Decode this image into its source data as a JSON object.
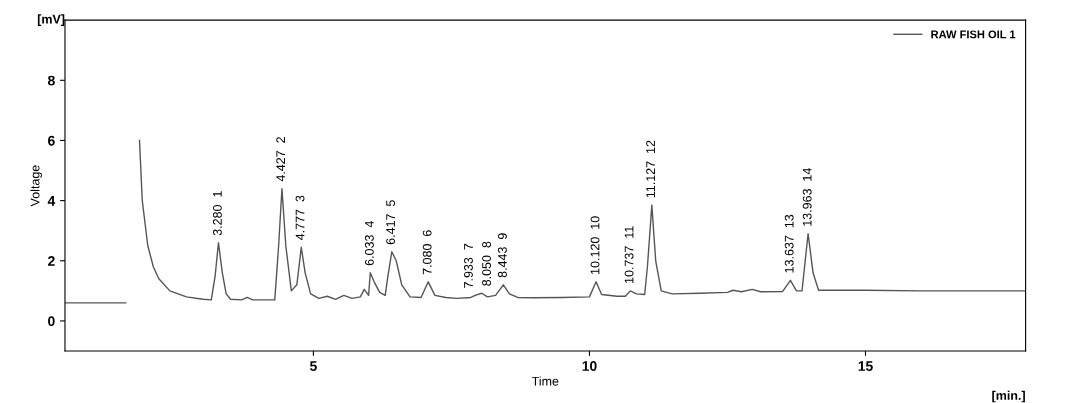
{
  "chart_data": {
    "type": "line",
    "xlabel": "Time",
    "ylabel": "Voltage",
    "xlim": [
      0.5,
      17.9
    ],
    "ylim": [
      -1,
      10
    ],
    "xticks": [
      5,
      10,
      15
    ],
    "yticks": [
      0,
      2,
      4,
      6,
      8
    ],
    "grid": false,
    "legend": "top right",
    "marker": "none",
    "line_style": "solid",
    "series": [
      {
        "name": "RAW FISH OIL 1",
        "color": "#555555",
        "x": [
          0.5,
          1.6,
          1.61,
          1.8,
          1.85,
          1.9,
          2.0,
          2.1,
          2.2,
          2.4,
          2.7,
          3.0,
          3.15,
          3.22,
          3.28,
          3.35,
          3.42,
          3.5,
          3.7,
          3.8,
          3.9,
          4.3,
          4.37,
          4.43,
          4.5,
          4.6,
          4.7,
          4.78,
          4.85,
          4.95,
          5.1,
          5.25,
          5.4,
          5.55,
          5.7,
          5.85,
          5.92,
          6.0,
          6.03,
          6.1,
          6.2,
          6.3,
          6.35,
          6.42,
          6.5,
          6.6,
          6.75,
          6.95,
          7.08,
          7.2,
          7.4,
          7.6,
          7.85,
          7.93,
          8.05,
          8.15,
          8.3,
          8.44,
          8.55,
          8.7,
          9.0,
          9.5,
          10.0,
          10.12,
          10.22,
          10.5,
          10.65,
          10.74,
          10.85,
          11.0,
          11.05,
          11.13,
          11.2,
          11.3,
          11.5,
          12.0,
          12.5,
          12.6,
          12.75,
          12.95,
          13.1,
          13.5,
          13.64,
          13.75,
          13.85,
          13.96,
          14.05,
          14.15,
          15.0,
          16.0,
          17.9
        ],
        "values": [
          0.6,
          0.6,
          null,
          null,
          6,
          4,
          2.5,
          1.8,
          1.4,
          1.0,
          0.8,
          0.72,
          0.7,
          1.5,
          2.6,
          1.6,
          0.9,
          0.72,
          0.7,
          0.78,
          0.7,
          0.7,
          2.5,
          4.4,
          2.5,
          1.0,
          1.2,
          2.45,
          1.6,
          0.9,
          0.75,
          0.82,
          0.72,
          0.85,
          0.75,
          0.8,
          1.05,
          0.85,
          1.6,
          1.3,
          0.95,
          0.85,
          1.5,
          2.3,
          2.0,
          1.2,
          0.8,
          0.78,
          1.3,
          0.85,
          0.78,
          0.75,
          0.78,
          0.85,
          0.92,
          0.8,
          0.85,
          1.2,
          0.9,
          0.78,
          0.77,
          0.78,
          0.8,
          1.3,
          0.88,
          0.82,
          0.82,
          1.0,
          0.9,
          0.88,
          1.8,
          3.85,
          2.0,
          1.0,
          0.9,
          0.92,
          0.95,
          1.02,
          0.97,
          1.05,
          0.97,
          0.98,
          1.35,
          1.0,
          1.0,
          2.9,
          1.6,
          1.02,
          1.02,
          1.0,
          1.0
        ]
      }
    ],
    "annotations": [
      "[mV]",
      "[min.]",
      {
        "text": "3.280  1",
        "x": 3.28,
        "y": 2.6
      },
      {
        "text": "4.427  2",
        "x": 4.427,
        "y": 4.4
      },
      {
        "text": "4.777  3",
        "x": 4.777,
        "y": 2.45
      },
      {
        "text": "6.033  4",
        "x": 6.033,
        "y": 1.6
      },
      {
        "text": "6.417  5",
        "x": 6.417,
        "y": 2.3
      },
      {
        "text": "7.080  6",
        "x": 7.08,
        "y": 1.3
      },
      {
        "text": "7.933  7",
        "x": 7.933,
        "y": 0.85
      },
      {
        "text": "8.050  8",
        "x": 8.05,
        "y": 0.92
      },
      {
        "text": "8.443  9",
        "x": 8.443,
        "y": 1.2
      },
      {
        "text": "10.120  10",
        "x": 10.12,
        "y": 1.3
      },
      {
        "text": "10.737  11",
        "x": 10.737,
        "y": 1.0
      },
      {
        "text": "11.127  12",
        "x": 11.127,
        "y": 3.85
      },
      {
        "text": "13.637  13",
        "x": 13.637,
        "y": 1.35
      },
      {
        "text": "13.963  14",
        "x": 13.963,
        "y": 2.9
      }
    ]
  }
}
